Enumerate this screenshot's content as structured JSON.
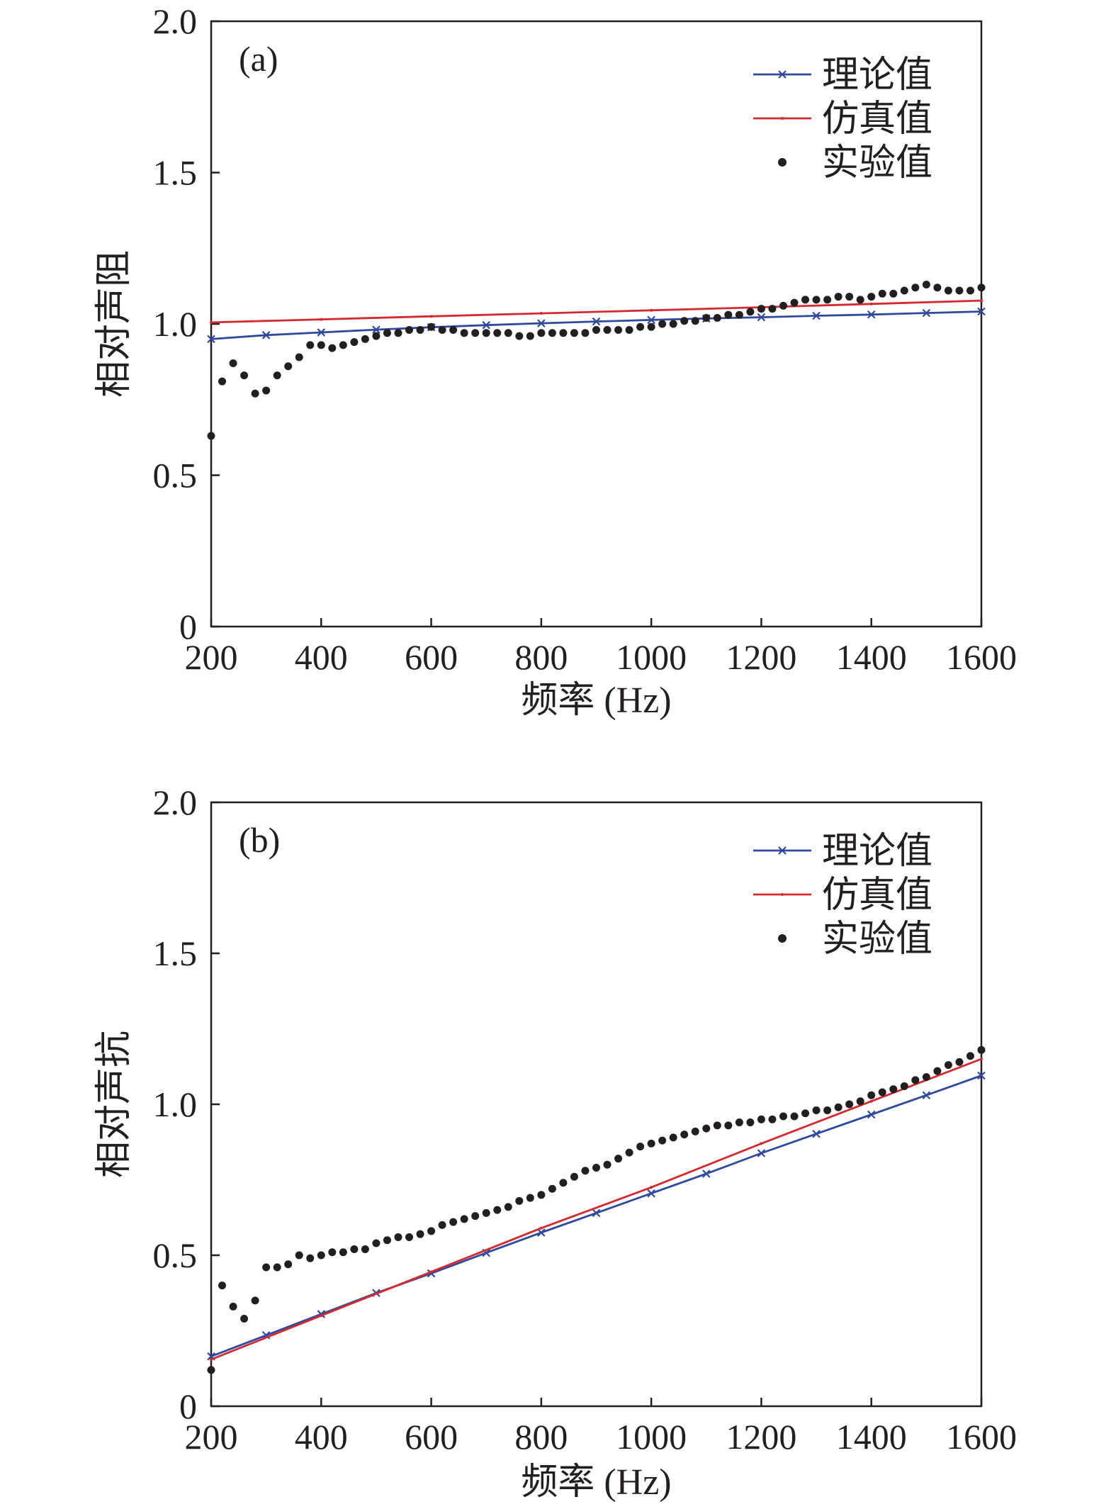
{
  "chart_data": [
    {
      "type": "line",
      "panel_label": "(a)",
      "xlabel": "频率 (Hz)",
      "ylabel": "相对声阻",
      "xlim": [
        200,
        1600
      ],
      "ylim": [
        0,
        2.0
      ],
      "x_ticks": [
        "200",
        "400",
        "600",
        "800",
        "1000",
        "1200",
        "1400",
        "1600"
      ],
      "y_ticks": [
        "0",
        "0.5",
        "1.0",
        "1.5",
        "2.0"
      ],
      "grid": false,
      "legend_position": "top-right",
      "series": [
        {
          "name": "理论值",
          "style": "line-x",
          "color": "#2e4a9e",
          "x": [
            200,
            300,
            400,
            500,
            600,
            700,
            800,
            900,
            1000,
            1100,
            1200,
            1300,
            1400,
            1500,
            1600
          ],
          "y": [
            0.95,
            0.963,
            0.972,
            0.981,
            0.989,
            0.996,
            1.002,
            1.008,
            1.013,
            1.018,
            1.022,
            1.027,
            1.031,
            1.036,
            1.041
          ]
        },
        {
          "name": "仿真值",
          "style": "line",
          "color": "#d42a2f",
          "x": [
            200,
            400,
            600,
            800,
            1000,
            1200,
            1400,
            1600
          ],
          "y": [
            1.005,
            1.015,
            1.025,
            1.035,
            1.045,
            1.055,
            1.066,
            1.077
          ]
        },
        {
          "name": "实验值",
          "style": "dots",
          "color": "#231f20",
          "x": [
            200,
            220,
            240,
            260,
            280,
            300,
            320,
            340,
            360,
            380,
            400,
            420,
            440,
            460,
            480,
            500,
            520,
            540,
            560,
            580,
            600,
            620,
            640,
            660,
            680,
            700,
            720,
            740,
            760,
            780,
            800,
            820,
            840,
            860,
            880,
            900,
            920,
            940,
            960,
            980,
            1000,
            1020,
            1040,
            1060,
            1080,
            1100,
            1120,
            1140,
            1160,
            1180,
            1200,
            1220,
            1240,
            1260,
            1280,
            1300,
            1320,
            1340,
            1360,
            1380,
            1400,
            1420,
            1440,
            1460,
            1480,
            1500,
            1520,
            1540,
            1560,
            1580,
            1600
          ],
          "y": [
            0.63,
            0.81,
            0.87,
            0.83,
            0.77,
            0.78,
            0.83,
            0.86,
            0.89,
            0.93,
            0.93,
            0.92,
            0.93,
            0.94,
            0.95,
            0.96,
            0.97,
            0.97,
            0.98,
            0.98,
            0.99,
            0.98,
            0.98,
            0.97,
            0.97,
            0.97,
            0.97,
            0.97,
            0.96,
            0.96,
            0.97,
            0.97,
            0.97,
            0.97,
            0.97,
            0.98,
            0.98,
            0.98,
            0.98,
            0.99,
            0.99,
            1.0,
            1.0,
            1.01,
            1.01,
            1.02,
            1.02,
            1.03,
            1.03,
            1.04,
            1.05,
            1.05,
            1.06,
            1.07,
            1.08,
            1.08,
            1.08,
            1.09,
            1.09,
            1.08,
            1.09,
            1.1,
            1.1,
            1.11,
            1.12,
            1.13,
            1.12,
            1.11,
            1.11,
            1.11,
            1.12
          ]
        }
      ]
    },
    {
      "type": "line",
      "panel_label": "(b)",
      "xlabel": "频率 (Hz)",
      "ylabel": "相对声抗",
      "xlim": [
        200,
        1600
      ],
      "ylim": [
        0,
        2.0
      ],
      "x_ticks": [
        "200",
        "400",
        "600",
        "800",
        "1000",
        "1200",
        "1400",
        "1600"
      ],
      "y_ticks": [
        "0",
        "0.5",
        "1.0",
        "1.5",
        "2.0"
      ],
      "grid": false,
      "legend_position": "top-right",
      "series": [
        {
          "name": "理论值",
          "style": "line-x",
          "color": "#2e4a9e",
          "x": [
            200,
            300,
            400,
            500,
            600,
            700,
            800,
            900,
            1000,
            1100,
            1200,
            1300,
            1400,
            1500,
            1600
          ],
          "y": [
            0.165,
            0.235,
            0.305,
            0.375,
            0.44,
            0.508,
            0.575,
            0.64,
            0.705,
            0.77,
            0.838,
            0.902,
            0.966,
            1.03,
            1.095
          ]
        },
        {
          "name": "仿真值",
          "style": "line",
          "color": "#d42a2f",
          "x": [
            200,
            400,
            600,
            800,
            1000,
            1200,
            1400,
            1600
          ],
          "y": [
            0.155,
            0.3,
            0.445,
            0.59,
            0.725,
            0.87,
            1.01,
            1.15
          ]
        },
        {
          "name": "实验值",
          "style": "dots",
          "color": "#231f20",
          "x": [
            200,
            220,
            240,
            260,
            280,
            300,
            320,
            340,
            360,
            380,
            400,
            420,
            440,
            460,
            480,
            500,
            520,
            540,
            560,
            580,
            600,
            620,
            640,
            660,
            680,
            700,
            720,
            740,
            760,
            780,
            800,
            820,
            840,
            860,
            880,
            900,
            920,
            940,
            960,
            980,
            1000,
            1020,
            1040,
            1060,
            1080,
            1100,
            1120,
            1140,
            1160,
            1180,
            1200,
            1220,
            1240,
            1260,
            1280,
            1300,
            1320,
            1340,
            1360,
            1380,
            1400,
            1420,
            1440,
            1460,
            1480,
            1500,
            1520,
            1540,
            1560,
            1580,
            1600
          ],
          "y": [
            0.12,
            0.4,
            0.33,
            0.29,
            0.35,
            0.46,
            0.46,
            0.47,
            0.5,
            0.49,
            0.5,
            0.51,
            0.51,
            0.52,
            0.52,
            0.54,
            0.55,
            0.56,
            0.56,
            0.57,
            0.58,
            0.6,
            0.61,
            0.62,
            0.63,
            0.64,
            0.65,
            0.66,
            0.68,
            0.69,
            0.7,
            0.72,
            0.74,
            0.76,
            0.78,
            0.79,
            0.8,
            0.82,
            0.84,
            0.86,
            0.87,
            0.88,
            0.89,
            0.9,
            0.91,
            0.92,
            0.93,
            0.93,
            0.94,
            0.94,
            0.95,
            0.95,
            0.96,
            0.96,
            0.97,
            0.98,
            0.98,
            0.99,
            1.0,
            1.01,
            1.03,
            1.04,
            1.05,
            1.06,
            1.08,
            1.09,
            1.11,
            1.13,
            1.14,
            1.16,
            1.18
          ]
        }
      ]
    }
  ]
}
